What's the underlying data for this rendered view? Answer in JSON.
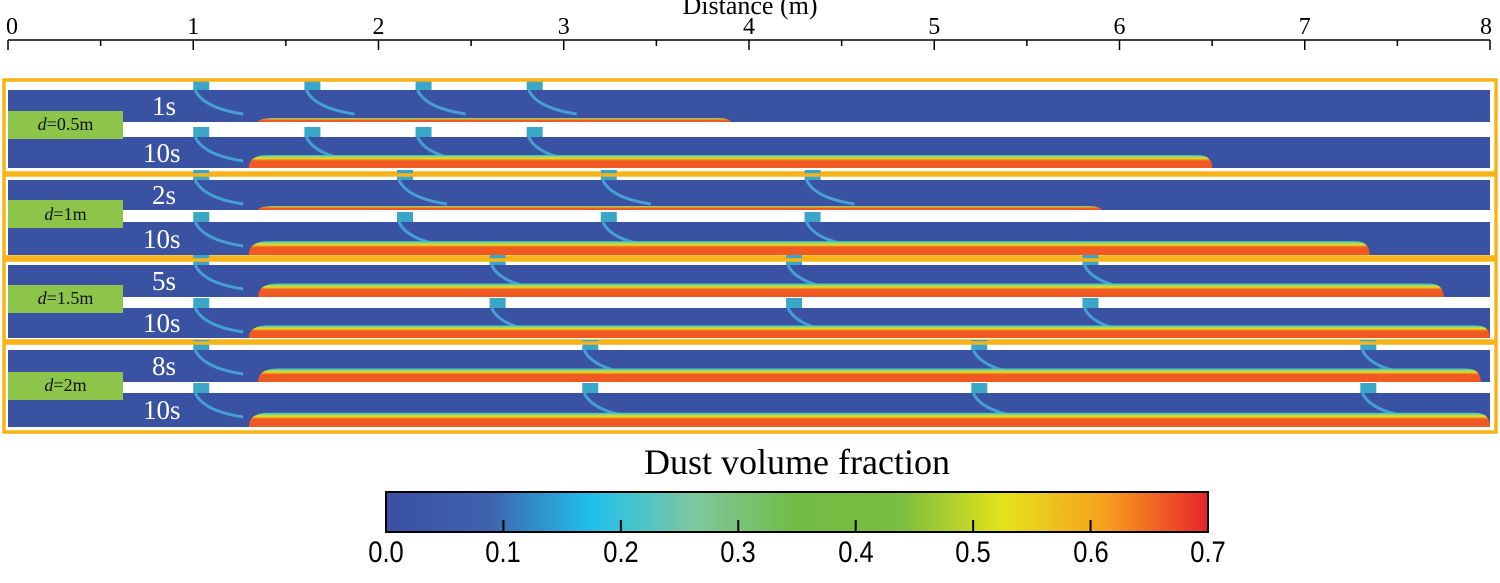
{
  "axis": {
    "title": "Distance (m)",
    "min": 0,
    "max": 8,
    "ticks": [
      "0",
      "1",
      "2",
      "3",
      "4",
      "5",
      "6",
      "7",
      "8"
    ]
  },
  "groups": [
    {
      "label_var": "d",
      "label_val": "=0.5m",
      "vents_m": [
        1.0,
        1.6,
        2.2,
        2.8
      ],
      "rows": [
        {
          "time": "1s",
          "dust_start_m": 1.35,
          "dust_end_m": 3.9,
          "thin": true
        },
        {
          "time": "10s",
          "dust_start_m": 1.3,
          "dust_end_m": 6.5,
          "thin": false
        }
      ]
    },
    {
      "label_var": "d",
      "label_val": "=1m",
      "vents_m": [
        1.0,
        2.1,
        3.2,
        4.3
      ],
      "rows": [
        {
          "time": "2s",
          "dust_start_m": 1.35,
          "dust_end_m": 5.9,
          "thin": true
        },
        {
          "time": "10s",
          "dust_start_m": 1.3,
          "dust_end_m": 7.35,
          "thin": false
        }
      ]
    },
    {
      "label_var": "d",
      "label_val": "=1.5m",
      "vents_m": [
        1.0,
        2.6,
        4.2,
        5.8
      ],
      "rows": [
        {
          "time": "5s",
          "dust_start_m": 1.35,
          "dust_end_m": 7.75,
          "thin": false
        },
        {
          "time": "10s",
          "dust_start_m": 1.3,
          "dust_end_m": 8.0,
          "thin": false
        }
      ]
    },
    {
      "label_var": "d",
      "label_val": "=2m",
      "vents_m": [
        1.0,
        3.1,
        5.2,
        7.3
      ],
      "rows": [
        {
          "time": "8s",
          "dust_start_m": 1.35,
          "dust_end_m": 7.95,
          "thin": false
        },
        {
          "time": "10s",
          "dust_start_m": 1.3,
          "dust_end_m": 8.0,
          "thin": false
        }
      ]
    }
  ],
  "colorbar": {
    "title": "Dust volume fraction",
    "min": 0.0,
    "max": 0.7,
    "tick_labels": [
      "0.0",
      "0.1",
      "0.2",
      "0.3",
      "0.4",
      "0.5",
      "0.6",
      "0.7"
    ],
    "stops": [
      "#3b4fa3",
      "#3f63ad",
      "#20c0ec",
      "#7ec8a0",
      "#72bc44",
      "#7abd40",
      "#e3e31a",
      "#f7a01e",
      "#e8242a"
    ]
  },
  "colors": {
    "channel": "#3a52a2",
    "frame": "#f7b419",
    "dust": "#f05a22"
  }
}
